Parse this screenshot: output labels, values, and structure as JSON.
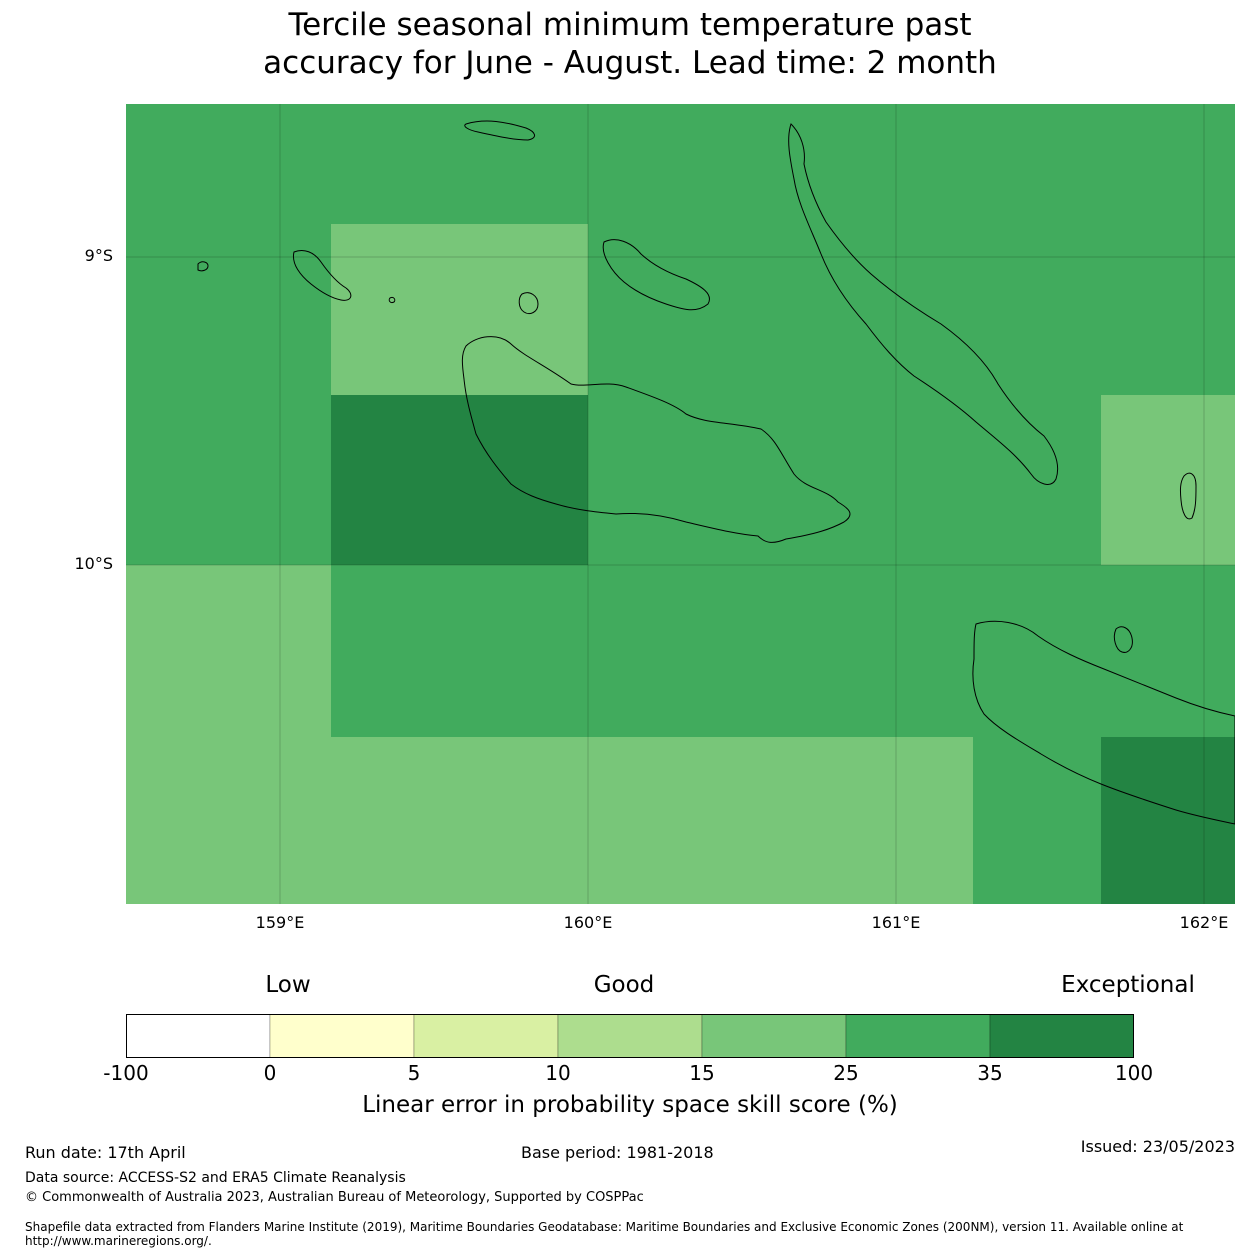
{
  "title": {
    "line1": "Tercile seasonal minimum temperature past",
    "line2": "accuracy for June - August. Lead time: 2 month"
  },
  "map": {
    "lat_labels": [
      "9°S",
      "10°S"
    ],
    "lon_labels": [
      "159°E",
      "160°E",
      "161°E",
      "162°E"
    ],
    "colors": {
      "c15_25": "#78c679",
      "c25_35": "#41ab5d",
      "c35_100": "#238443"
    },
    "cells": [
      [
        "c25_35",
        "c25_35",
        "c25_35",
        "c25_35",
        "c25_35",
        "c25_35",
        "c25_35",
        "c25_35",
        "c25_35",
        "c25_35"
      ],
      [
        "c25_35",
        "c15_25",
        "c15_25",
        "c25_35",
        "c25_35",
        "c25_35",
        "c25_35",
        "c25_35",
        "c25_35",
        "c25_35"
      ],
      [
        "c25_35",
        "c35_100",
        "c35_100",
        "c25_35",
        "c25_35",
        "c25_35",
        "c25_35",
        "c25_35",
        "c25_35",
        "c15_25"
      ],
      [
        "c15_25",
        "c25_35",
        "c25_35",
        "c25_35",
        "c25_35",
        "c25_35",
        "c25_35",
        "c25_35",
        "c25_35",
        "c25_35"
      ],
      [
        "c15_25",
        "c15_25",
        "c15_25",
        "c15_25",
        "c15_25",
        "c15_25",
        "c25_35",
        "c25_35",
        "c25_35",
        "c35_100"
      ]
    ]
  },
  "legend": {
    "categories": [
      "Low",
      "Good",
      "Exceptional"
    ],
    "colors": [
      "#ffffff",
      "#ffffcc",
      "#d9f0a3",
      "#addd8e",
      "#78c679",
      "#41ab5d",
      "#238443"
    ],
    "ticks": [
      "-100",
      "0",
      "5",
      "10",
      "15",
      "25",
      "35",
      "100"
    ],
    "label": "Linear error in probability space skill score (%)"
  },
  "footer": {
    "run_date": "Run date: 17th April",
    "base_period": "Base period: 1981-2018",
    "issued": "Issued: 23/05/2023",
    "data_source": "Data source: ACCESS-S2 and ERA5 Climate Reanalysis",
    "copyright": "© Commonwealth of Australia 2023, Australian Bureau of Meteorology, Supported by COSPPac",
    "shapefile_line1": "Shapefile data extracted from Flanders Marine Institute (2019), Maritime Boundaries Geodatabase: Maritime Boundaries and Exclusive Economic Zones (200NM), version 11. Available online at",
    "shapefile_line2": "http://www.marineregions.org/."
  }
}
